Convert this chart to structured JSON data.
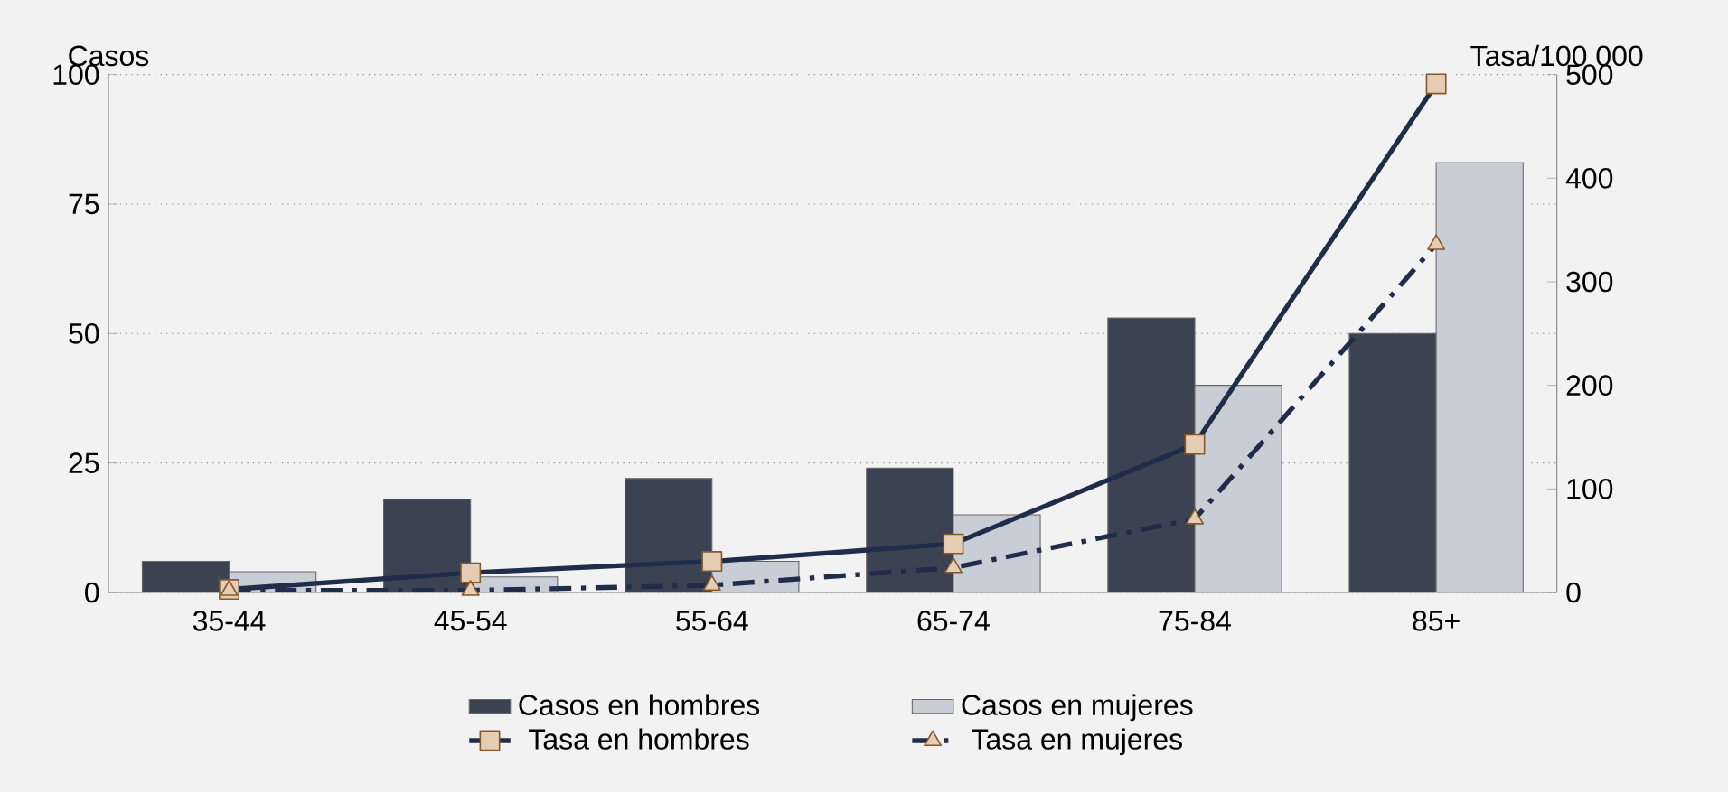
{
  "chart_data": {
    "type": "bar",
    "ylabel": "Casos",
    "y2label": "Tasa/100 000",
    "categories": [
      "35-44",
      "45-54",
      "55-64",
      "65-74",
      "75-84",
      "85+"
    ],
    "series": [
      {
        "name": "Casos en hombres",
        "color": "#3b4352",
        "values": [
          6,
          18,
          22,
          24,
          53,
          50
        ]
      },
      {
        "name": "Casos en mujeres",
        "color": "#c9cdd5",
        "values": [
          4,
          3,
          6,
          15,
          40,
          83
        ]
      },
      {
        "name": "Tasa en hombres",
        "type": "line",
        "axis": "y2",
        "color": "#1f2d4a",
        "marker": "square",
        "line_style": "solid",
        "values": [
          3,
          19,
          30,
          47,
          143,
          491
        ]
      },
      {
        "name": "Tasa en mujeres",
        "type": "line",
        "axis": "y2",
        "color": "#1f2d4a",
        "marker": "triangle",
        "line_style": "dashed",
        "values": [
          2,
          2,
          7,
          24,
          71,
          336
        ]
      }
    ],
    "ylim": [
      0,
      100
    ],
    "yticks": [
      0,
      25,
      50,
      75,
      100
    ],
    "y2lim": [
      0,
      500
    ],
    "y2ticks": [
      0,
      100,
      200,
      300,
      400,
      500
    ],
    "grid": "y",
    "legend": "bottom"
  }
}
